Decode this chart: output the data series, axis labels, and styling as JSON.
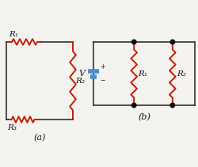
{
  "bg_color": "#f5f3ef",
  "resistor_color": "#cc1a00",
  "wire_color": "#303030",
  "battery_color": "#4a8fd4",
  "dot_color": "#111111",
  "label_color": "#111111",
  "circuit_a": {
    "label": "(a)",
    "R1_label": "R₁",
    "R2_label": "R₂",
    "R3_label": "R₃"
  },
  "circuit_b": {
    "label": "(b)",
    "V_label": "V",
    "R1_label": "R₁",
    "R2_label": "R₂",
    "plus_label": "+",
    "minus_label": "−"
  }
}
